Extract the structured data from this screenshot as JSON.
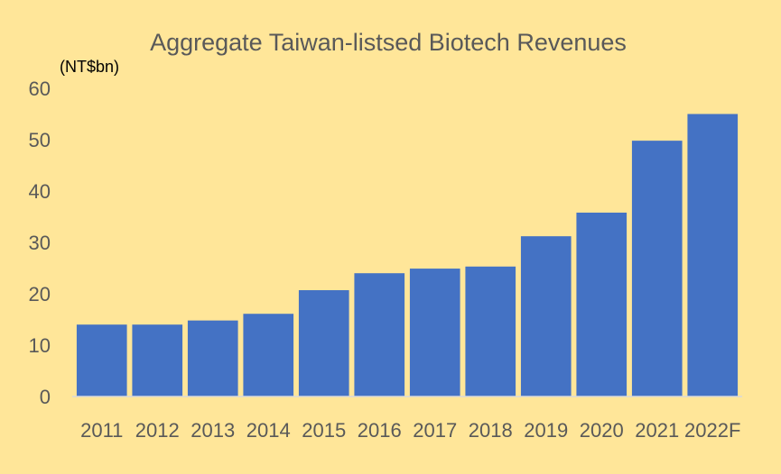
{
  "chart_data": {
    "type": "bar",
    "title": "Aggregate Taiwan-listsed Biotech Revenues",
    "unit_label": "(NT$bn)",
    "categories": [
      "2011",
      "2012",
      "2013",
      "2014",
      "2015",
      "2016",
      "2017",
      "2018",
      "2019",
      "2020",
      "2021",
      "2022F"
    ],
    "series": [
      {
        "values": [
          14,
          14,
          14.8,
          16.1,
          20.7,
          24,
          24.9,
          25.3,
          31.2,
          35.8,
          49.8,
          55
        ]
      }
    ],
    "ylim": [
      0,
      60
    ],
    "yticks": [
      0,
      10,
      20,
      30,
      40,
      50,
      60
    ],
    "grid": false,
    "legend": "none",
    "colors": {
      "bar": "#4472C4",
      "background": "#FFE699",
      "text": "#595959"
    }
  }
}
